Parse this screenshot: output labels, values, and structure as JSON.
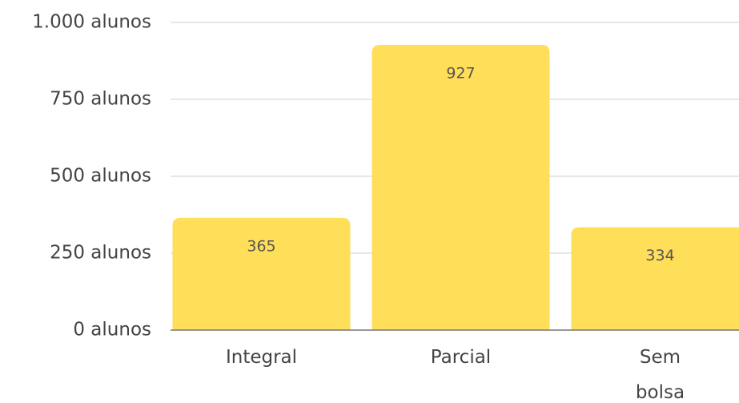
{
  "chart_data": {
    "type": "bar",
    "categories": [
      "Integral",
      "Parcial",
      "Sem bolsa"
    ],
    "values": [
      365,
      927,
      334
    ],
    "color": "#ffde59",
    "ylim": [
      0,
      1000
    ],
    "yticks": [
      {
        "value": 0,
        "label": "0 alunos"
      },
      {
        "value": 250,
        "label": "250 alunos"
      },
      {
        "value": 500,
        "label": "500 alunos"
      },
      {
        "value": 750,
        "label": "750 alunos"
      },
      {
        "value": 1000,
        "label": "1.000 alunos"
      }
    ],
    "grid": true
  }
}
